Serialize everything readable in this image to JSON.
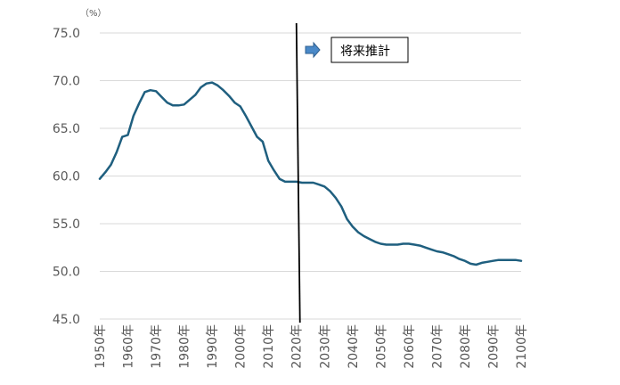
{
  "chart_data": {
    "type": "line",
    "unit_label": "（%）",
    "annotation": "将来推計",
    "colors": {
      "series": "#1f5f7f",
      "grid": "#d9d9d9",
      "divider": "#000000",
      "arrow_fill": "#4a89c8",
      "arrow_stroke": "#2f5f8f"
    },
    "ylim": [
      45,
      75
    ],
    "y_ticks": [
      "75.0",
      "70.0",
      "65.0",
      "60.0",
      "55.0",
      "50.0",
      "45.0"
    ],
    "y_tick_values": [
      75,
      70,
      65,
      60,
      55,
      50,
      45
    ],
    "xlim": [
      1950,
      2100
    ],
    "x_ticks": [
      "1950年",
      "1960年",
      "1970年",
      "1980年",
      "1990年",
      "2000年",
      "2010年",
      "2020年",
      "2030年",
      "2040年",
      "2050年",
      "2060年",
      "2070年",
      "2080年",
      "2090年",
      "2100年"
    ],
    "x_tick_values": [
      1950,
      1960,
      1970,
      1980,
      1990,
      2000,
      2010,
      2020,
      2030,
      2040,
      2050,
      2060,
      2070,
      2080,
      2090,
      2100
    ],
    "divider_x": 2020,
    "grid": true,
    "series": [
      {
        "x": [
          1950,
          1952,
          1954,
          1956,
          1958,
          1960,
          1962,
          1964,
          1966,
          1968,
          1970,
          1972,
          1974,
          1976,
          1978,
          1980,
          1982,
          1984,
          1986,
          1988,
          1990,
          1992,
          1994,
          1996,
          1998,
          2000,
          2002,
          2004,
          2006,
          2008,
          2010,
          2012,
          2014,
          2016,
          2018,
          2020,
          2022,
          2024,
          2026,
          2028,
          2030,
          2032,
          2034,
          2036,
          2038,
          2040,
          2042,
          2044,
          2046,
          2048,
          2050,
          2052,
          2054,
          2056,
          2058,
          2060,
          2062,
          2064,
          2066,
          2068,
          2070,
          2072,
          2074,
          2076,
          2078,
          2080,
          2082,
          2084,
          2086,
          2088,
          2090,
          2092,
          2094,
          2096,
          2098,
          2100
        ],
        "values": [
          59.7,
          60.4,
          61.2,
          62.5,
          64.1,
          64.3,
          66.3,
          67.6,
          68.8,
          69.0,
          68.9,
          68.3,
          67.7,
          67.4,
          67.4,
          67.5,
          68.0,
          68.5,
          69.3,
          69.7,
          69.8,
          69.5,
          69.0,
          68.4,
          67.7,
          67.3,
          66.3,
          65.2,
          64.1,
          63.6,
          61.6,
          60.6,
          59.7,
          59.4,
          59.4,
          59.4,
          59.3,
          59.3,
          59.3,
          59.1,
          58.9,
          58.4,
          57.7,
          56.8,
          55.5,
          54.7,
          54.1,
          53.7,
          53.4,
          53.1,
          52.9,
          52.8,
          52.8,
          52.8,
          52.9,
          52.9,
          52.8,
          52.7,
          52.5,
          52.3,
          52.1,
          52.0,
          51.8,
          51.6,
          51.3,
          51.1,
          50.8,
          50.7,
          50.9,
          51.0,
          51.1,
          51.2,
          51.2,
          51.2,
          51.2,
          51.1
        ]
      }
    ]
  }
}
